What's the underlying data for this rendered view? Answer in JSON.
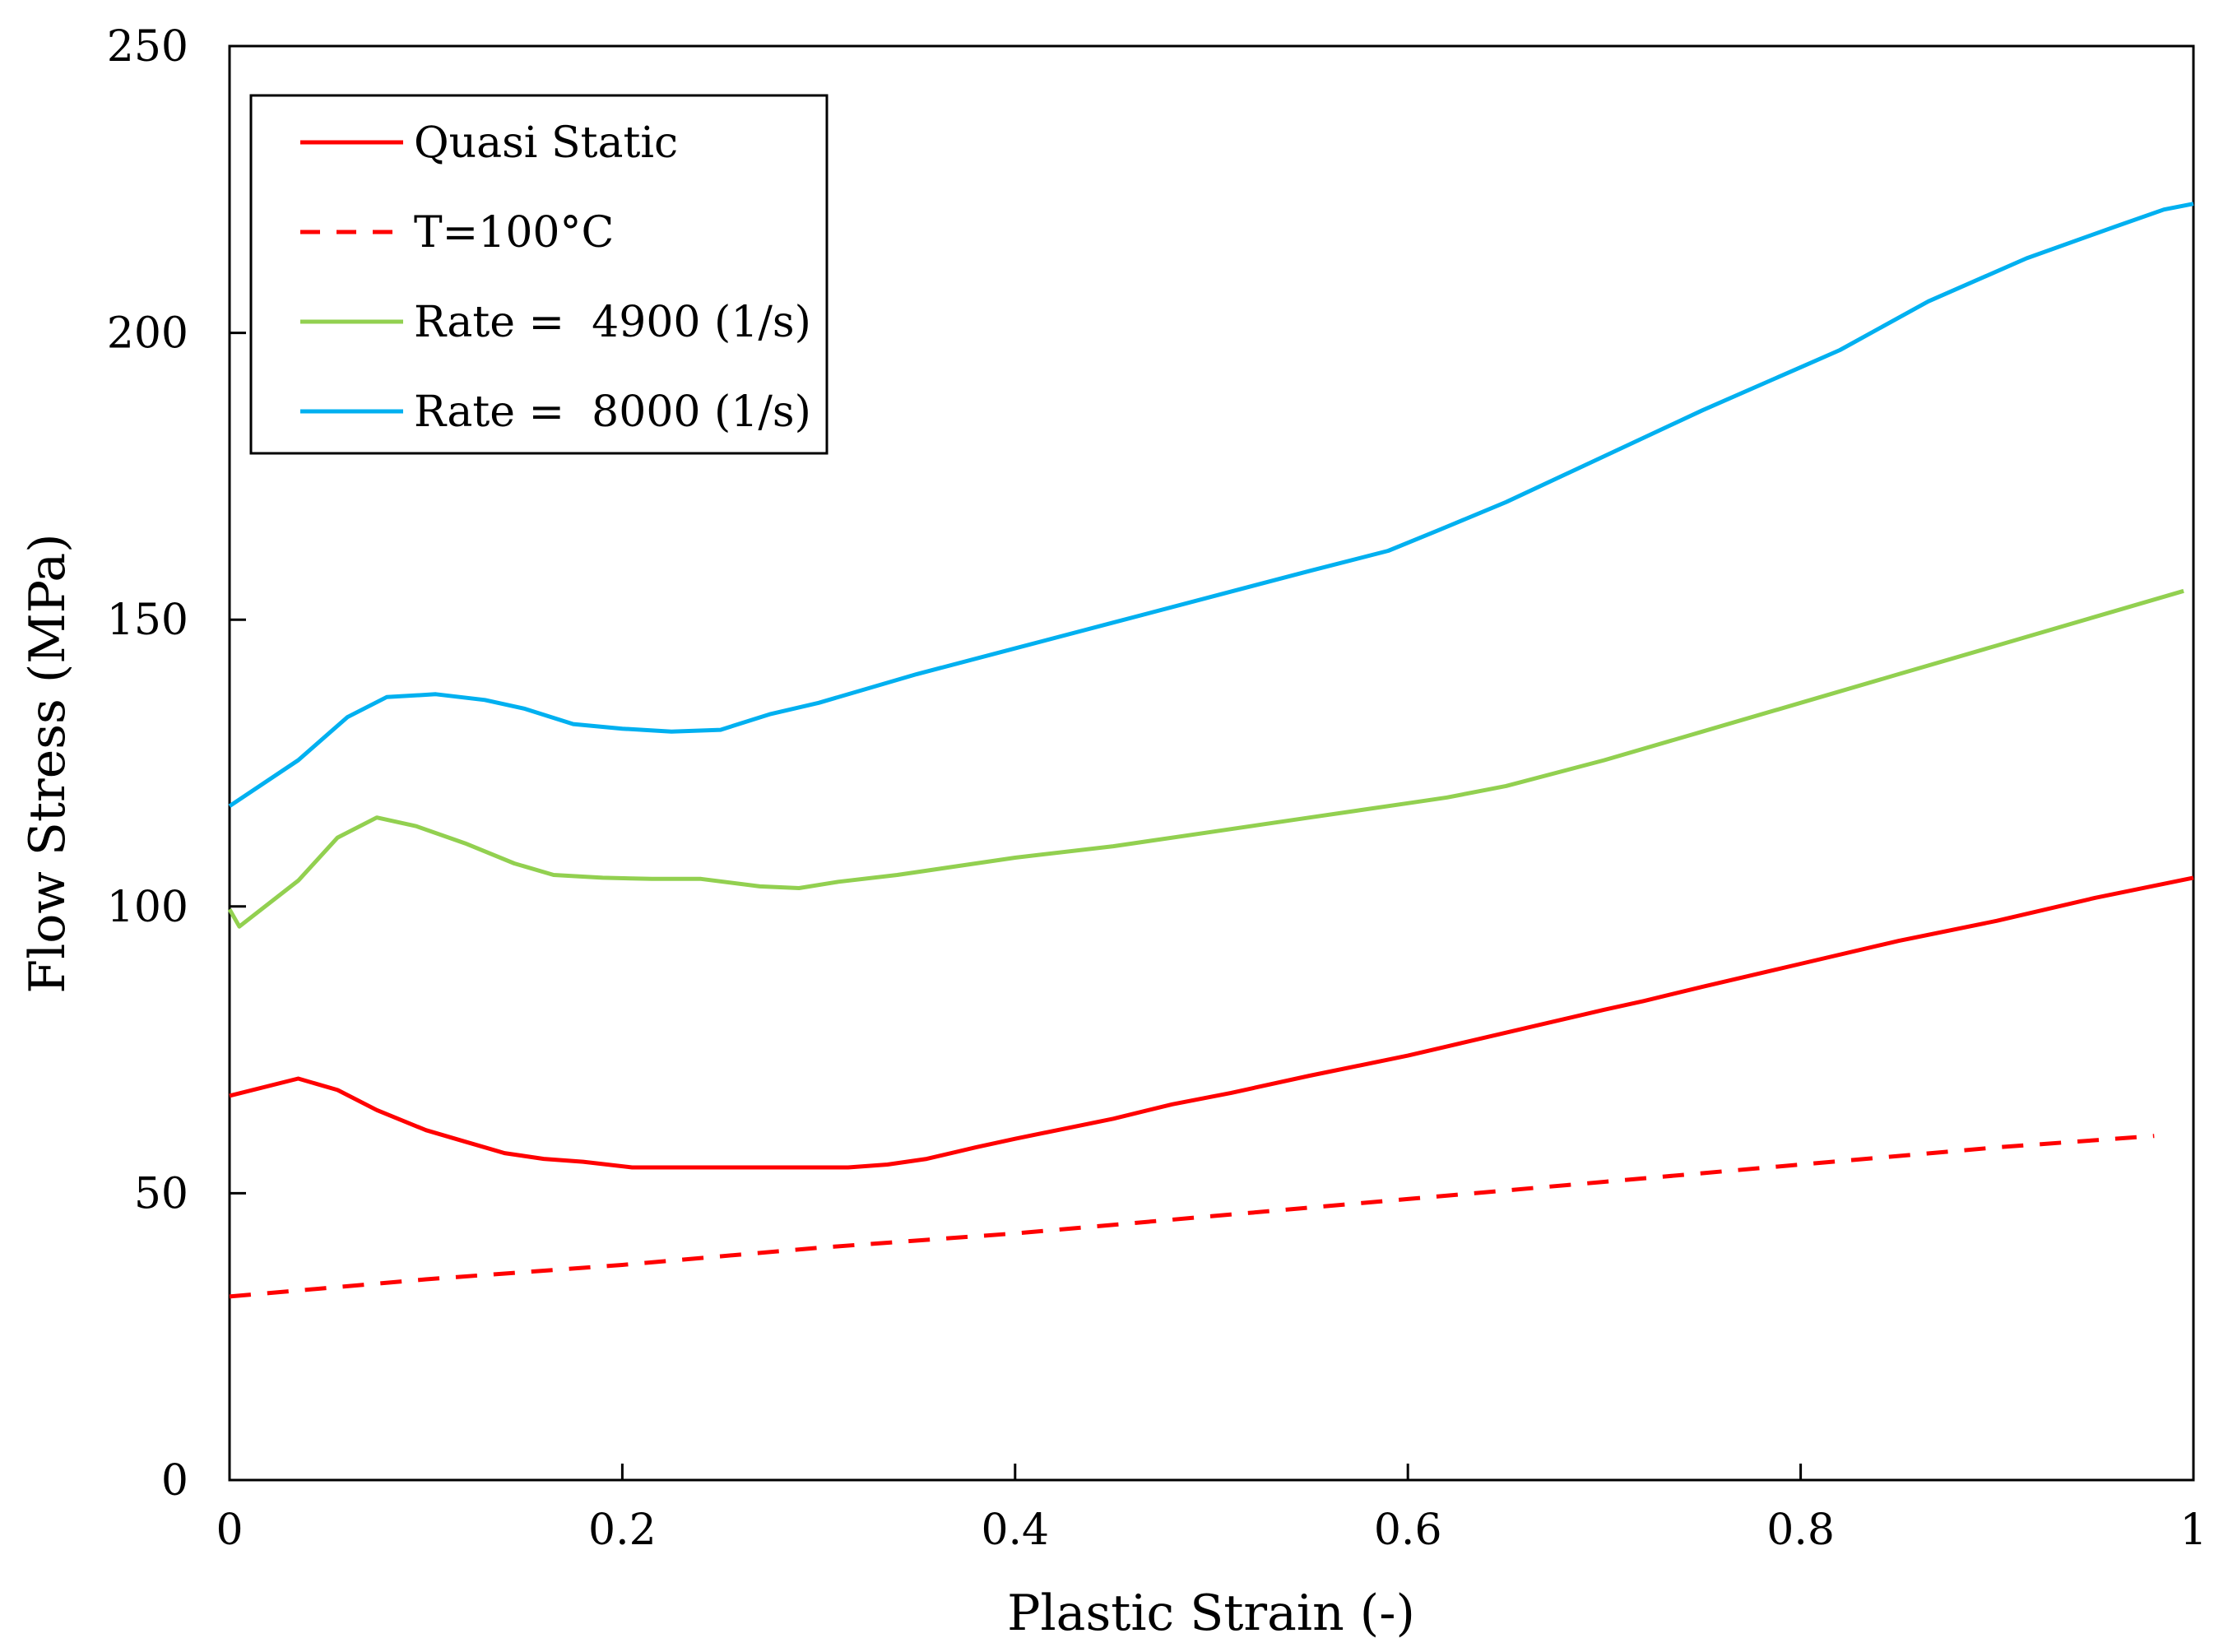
{
  "chart_data": {
    "type": "line",
    "title": "",
    "xlabel": "Plastic Strain (-)",
    "ylabel": "Flow Stress (MPa)",
    "xlim": [
      0,
      1
    ],
    "ylim": [
      0,
      250
    ],
    "x_ticks": [
      0,
      0.2,
      0.4,
      0.6,
      0.8,
      1
    ],
    "x_tick_labels": [
      "0",
      "0.2",
      "0.4",
      "0.6",
      "0.8",
      "1"
    ],
    "y_ticks": [
      0,
      50,
      100,
      150,
      200,
      250
    ],
    "y_tick_labels": [
      "0",
      "50",
      "100",
      "150",
      "200",
      "250"
    ],
    "grid": false,
    "legend_position": "top-left",
    "series": [
      {
        "name": "Quasi Static",
        "color": "#ff0000",
        "dash": "solid",
        "x": [
          0,
          0.035,
          0.055,
          0.075,
          0.1,
          0.12,
          0.14,
          0.16,
          0.18,
          0.205,
          0.25,
          0.3,
          0.315,
          0.335,
          0.355,
          0.38,
          0.4,
          0.45,
          0.48,
          0.51,
          0.55,
          0.6,
          0.65,
          0.7,
          0.72,
          0.75,
          0.8,
          0.85,
          0.9,
          0.95,
          1.0
        ],
        "y": [
          67,
          70,
          68,
          64.5,
          61,
          59,
          57,
          56,
          55.5,
          54.5,
          54.5,
          54.5,
          54.5,
          55,
          56,
          58,
          59.5,
          63,
          65.5,
          67.5,
          70.5,
          74,
          78,
          82,
          83.5,
          86,
          90,
          94,
          97.5,
          101.5,
          105
        ]
      },
      {
        "name": "T=100°C",
        "color": "#ff0000",
        "dash": "dashed",
        "x": [
          0,
          0.1,
          0.2,
          0.3,
          0.4,
          0.5,
          0.6,
          0.7,
          0.8,
          0.9,
          0.98
        ],
        "y": [
          32,
          35,
          37.5,
          40.5,
          43,
          46,
          49,
          52,
          55,
          58,
          60
        ]
      },
      {
        "name": "Rate =  4900 (1/s)",
        "color": "#92d050",
        "dash": "solid",
        "x": [
          0,
          0.005,
          0.035,
          0.055,
          0.075,
          0.095,
          0.12,
          0.145,
          0.165,
          0.19,
          0.215,
          0.24,
          0.27,
          0.29,
          0.31,
          0.34,
          0.37,
          0.4,
          0.45,
          0.5,
          0.55,
          0.6,
          0.62,
          0.65,
          0.7,
          0.75,
          0.8,
          0.85,
          0.9,
          0.95,
          0.995
        ],
        "y": [
          99.5,
          96.5,
          104.5,
          112,
          115.5,
          114,
          111,
          107.5,
          105.5,
          105,
          104.8,
          104.8,
          103.5,
          103.2,
          104.3,
          105.5,
          107,
          108.5,
          110.5,
          113,
          115.5,
          118,
          119,
          121,
          125.5,
          130.5,
          135.5,
          140.5,
          145.5,
          150.5,
          155
        ]
      },
      {
        "name": "Rate =  8000 (1/s)",
        "color": "#00b0f0",
        "dash": "solid",
        "x": [
          0,
          0.035,
          0.06,
          0.08,
          0.105,
          0.13,
          0.15,
          0.175,
          0.2,
          0.225,
          0.25,
          0.275,
          0.3,
          0.35,
          0.4,
          0.45,
          0.5,
          0.55,
          0.59,
          0.615,
          0.65,
          0.7,
          0.75,
          0.8,
          0.82,
          0.865,
          0.915,
          0.96,
          0.985,
          1.0
        ],
        "y": [
          117.5,
          125.5,
          133,
          136.5,
          137,
          136,
          134.5,
          131.8,
          131,
          130.5,
          130.8,
          133.5,
          135.5,
          140.5,
          145,
          149.5,
          154,
          158.5,
          162,
          165.5,
          170.5,
          178.5,
          186.5,
          194,
          197,
          205.5,
          213,
          218.5,
          221.5,
          222.5
        ]
      }
    ]
  }
}
